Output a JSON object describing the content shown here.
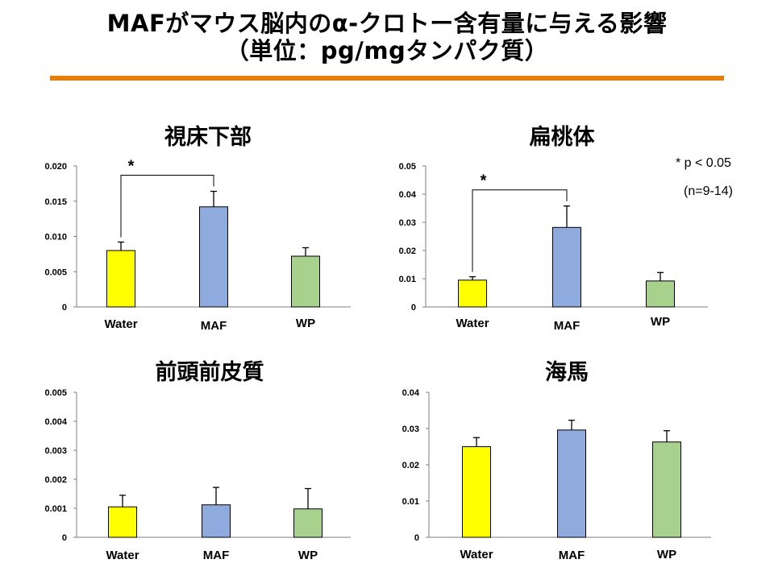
{
  "title_line1": "MAFがマウス脳内のα-クロトー含有量に与える影響",
  "title_line2": "（単位：pg/mgタンパク質）",
  "significance_note": "* p < 0.05",
  "sample_note": "(n=9-14)",
  "colors": {
    "accent_rule": "#e47f0e",
    "Water": "#ffff00",
    "MAF": "#8faadc",
    "WP": "#a9d18e"
  },
  "chart_data": [
    {
      "type": "bar",
      "title": "視床下部",
      "categories": [
        "Water",
        "MAF",
        "WP"
      ],
      "values": [
        0.008,
        0.0142,
        0.0072
      ],
      "errors": [
        0.0012,
        0.0022,
        0.0012
      ],
      "ylim": [
        0,
        0.02
      ],
      "yticks": [
        "0",
        "0.005",
        "0.010",
        "0.015",
        "0.020"
      ],
      "significance": {
        "from": "Water",
        "to": "MAF",
        "label": "*"
      }
    },
    {
      "type": "bar",
      "title": "扁桃体",
      "categories": [
        "Water",
        "MAF",
        "WP"
      ],
      "values": [
        0.0095,
        0.0282,
        0.0092
      ],
      "errors": [
        0.0012,
        0.0076,
        0.003
      ],
      "ylim": [
        0,
        0.05
      ],
      "yticks": [
        "0",
        "0.01",
        "0.02",
        "0.03",
        "0.04",
        "0.05"
      ],
      "significance": {
        "from": "Water",
        "to": "MAF",
        "label": "*"
      }
    },
    {
      "type": "bar",
      "title": "前頭前皮質",
      "categories": [
        "Water",
        "MAF",
        "WP"
      ],
      "values": [
        0.00105,
        0.00112,
        0.00098
      ],
      "errors": [
        0.0004,
        0.0006,
        0.0007
      ],
      "ylim": [
        0,
        0.005
      ],
      "yticks": [
        "0",
        "0.001",
        "0.002",
        "0.003",
        "0.004",
        "0.005"
      ]
    },
    {
      "type": "bar",
      "title": "海馬",
      "categories": [
        "Water",
        "MAF",
        "WP"
      ],
      "values": [
        0.025,
        0.0296,
        0.0263
      ],
      "errors": [
        0.0025,
        0.0027,
        0.0031
      ],
      "ylim": [
        0,
        0.04
      ],
      "yticks": [
        "0",
        "0.01",
        "0.02",
        "0.03",
        "0.04"
      ]
    }
  ]
}
